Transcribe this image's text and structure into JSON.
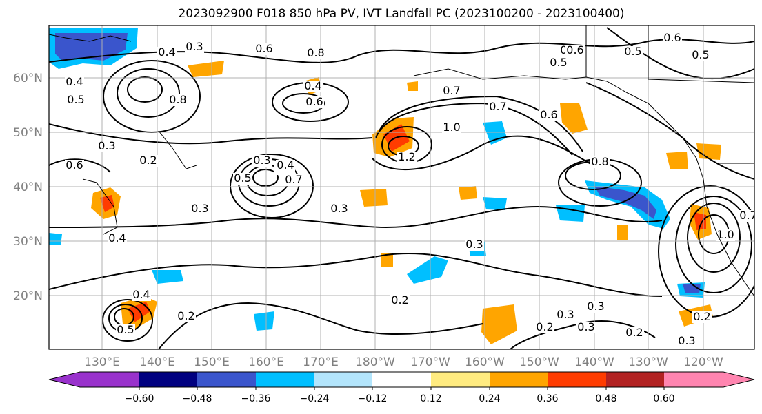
{
  "title": "2023092900 F018 850 hPa PV, IVT Landfall PC (2023100200 - 2023100400)",
  "map": {
    "lon_ticks": [
      "130°E",
      "140°E",
      "150°E",
      "160°E",
      "170°E",
      "180°W",
      "170°W",
      "160°W",
      "150°W",
      "140°W",
      "130°W",
      "120°W"
    ],
    "lat_ticks": [
      "60°N",
      "50°N",
      "40°N",
      "30°N",
      "20°N"
    ]
  },
  "contour_labels": [
    {
      "text": "0.3"
    },
    {
      "text": "0.4"
    },
    {
      "text": "0.6"
    },
    {
      "text": "0.8"
    },
    {
      "text": "0.4"
    },
    {
      "text": "0.7"
    },
    {
      "text": "0.8"
    },
    {
      "text": "0.5"
    },
    {
      "text": "0.4"
    },
    {
      "text": "0.6"
    },
    {
      "text": "0.3"
    },
    {
      "text": "0.6"
    },
    {
      "text": "0.2"
    },
    {
      "text": "0.2"
    },
    {
      "text": "0.3"
    },
    {
      "text": "0.5"
    },
    {
      "text": "0.4"
    },
    {
      "text": "0.7"
    },
    {
      "text": "1.0"
    },
    {
      "text": "1.2"
    },
    {
      "text": "0.7"
    },
    {
      "text": "0.6"
    },
    {
      "text": "0.5"
    },
    {
      "text": "0.4"
    },
    {
      "text": "0.6"
    },
    {
      "text": "0.5"
    },
    {
      "text": "0.6"
    },
    {
      "text": "0.5"
    },
    {
      "text": "0.8"
    },
    {
      "text": "0.3"
    },
    {
      "text": "0.3"
    },
    {
      "text": "0.3"
    },
    {
      "text": "0.4"
    },
    {
      "text": "0.2"
    },
    {
      "text": "0.3"
    },
    {
      "text": "0.2"
    },
    {
      "text": "0.3"
    },
    {
      "text": "0.2"
    },
    {
      "text": "0.3"
    },
    {
      "text": "0.2"
    },
    {
      "text": "0.4"
    },
    {
      "text": "0.5"
    },
    {
      "text": "0.2"
    },
    {
      "text": "0.3"
    },
    {
      "text": "1.0"
    },
    {
      "text": "0.7"
    }
  ],
  "colorbar": {
    "colors": [
      "#9932cc",
      "#000080",
      "#3a55cc",
      "#00bfff",
      "#b3e5fc",
      "#ffffff",
      "#ffeb80",
      "#ffa500",
      "#ff3c00",
      "#b22222",
      "#ff85b0"
    ],
    "labels": [
      "−0.60",
      "−0.48",
      "−0.36",
      "−0.24",
      "−0.12",
      "0.12",
      "0.24",
      "0.36",
      "0.48",
      "0.60"
    ]
  },
  "colors": {
    "frame": "#000000",
    "grid": "#b0b0b0",
    "contour": "#000000",
    "tick_label": "#808080"
  }
}
